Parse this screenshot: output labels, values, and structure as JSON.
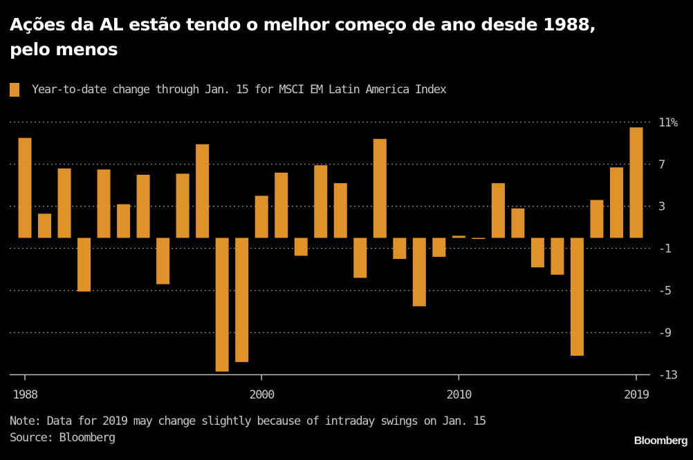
{
  "chart_data": {
    "type": "bar",
    "title": "Ações da AL estão tendo o melhor começo de ano desde 1988, pelo menos",
    "legend": [
      {
        "name": "Year-to-date change through Jan. 15 for MSCI EM Latin America Index",
        "color": "#e0922a"
      }
    ],
    "legend_position": "top-left",
    "xlabel": "",
    "ylabel": "",
    "categories": [
      1988,
      1989,
      1990,
      1991,
      1992,
      1993,
      1994,
      1995,
      1996,
      1997,
      1998,
      1999,
      2000,
      2001,
      2002,
      2003,
      2004,
      2005,
      2006,
      2007,
      2008,
      2009,
      2010,
      2011,
      2012,
      2013,
      2014,
      2015,
      2016,
      2017,
      2018,
      2019
    ],
    "values": [
      9.5,
      2.3,
      6.6,
      -5.1,
      6.5,
      3.2,
      6.0,
      -4.4,
      6.1,
      8.9,
      -12.7,
      -11.8,
      4.0,
      6.2,
      -1.7,
      6.9,
      5.2,
      -3.8,
      9.4,
      -2.0,
      -6.5,
      -1.8,
      0.2,
      -0.1,
      5.2,
      2.8,
      -2.8,
      -3.5,
      -11.2,
      3.6,
      6.7,
      10.5
    ],
    "x_ticks": [
      1988,
      2000,
      2010,
      2019
    ],
    "x_tick_labels": [
      "1988",
      "2000",
      "2010",
      "2019"
    ],
    "y_ticks": [
      11,
      7,
      3,
      -1,
      -5,
      -9,
      -13
    ],
    "y_tick_labels": [
      "11%",
      "7",
      "3",
      "-1",
      "-5",
      "-9",
      "-13"
    ],
    "ylim": [
      -13,
      11
    ],
    "grid": true,
    "y_axis_side": "right",
    "note": "Note: Data for 2019 may change slightly because of intraday swings on Jan. 15",
    "source": "Source: Bloomberg"
  },
  "header": {
    "title_line1": "Ações da AL estão tendo o melhor começo de ano desde 1988,",
    "title_line2": "pelo menos"
  },
  "legend": {
    "label": "Year-to-date change through Jan. 15 for MSCI EM Latin America Index"
  },
  "footer": {
    "note": "Note: Data for 2019 may change slightly because of intraday swings on Jan. 15",
    "source": "Source: Bloomberg",
    "brand": "Bloomberg"
  },
  "colors": {
    "bar": "#e0922a",
    "background": "#000000",
    "grid": "#8a8a8a",
    "axis": "#bfbfbf",
    "text": "#c8c8c8"
  }
}
